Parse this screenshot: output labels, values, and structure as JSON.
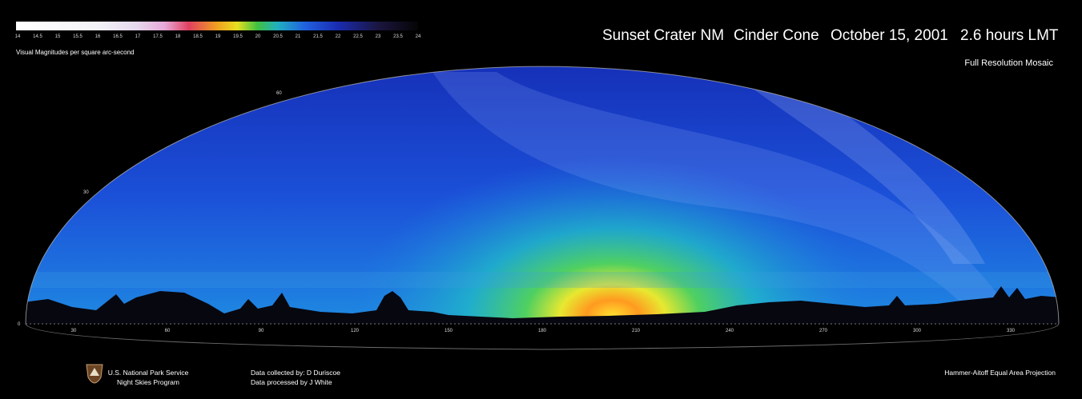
{
  "header": {
    "title_parts": [
      "Sunset Crater NM",
      "Cinder Cone",
      "October 15, 2001",
      "2.6 hours LMT"
    ],
    "subtitle": "Full Resolution Mosaic"
  },
  "colorbar": {
    "label": "Visual Magnitudes per square arc-second",
    "ticks": [
      14,
      14.5,
      15,
      15.5,
      16,
      16.5,
      17,
      17.5,
      18,
      18.5,
      19,
      19.5,
      20,
      20.5,
      21,
      21.5,
      22,
      22.5,
      23,
      23.5,
      24
    ]
  },
  "sky_map": {
    "altitude_labels": [
      0,
      30,
      60
    ],
    "azimuth_labels": [
      30,
      60,
      90,
      120,
      150,
      180,
      210,
      240,
      270,
      300,
      330
    ]
  },
  "footer": {
    "agency": [
      "U.S. National Park Service",
      "Night Skies Program"
    ],
    "credits": [
      "Data collected by: D Duriscoe",
      "Data processed by J White"
    ],
    "projection": "Hammer-Aitoff Equal Area Projection"
  }
}
